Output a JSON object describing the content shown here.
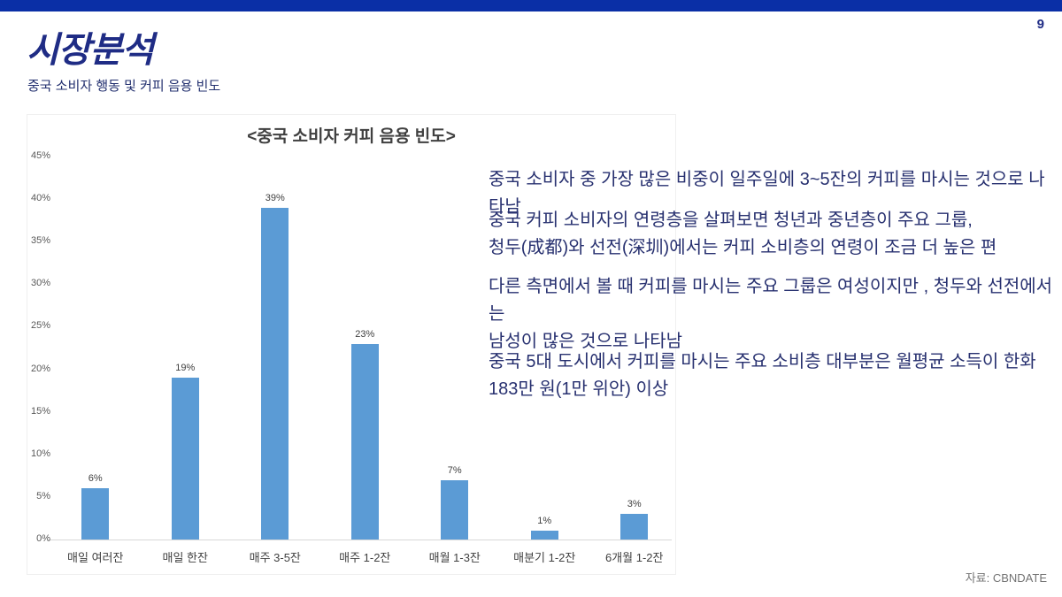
{
  "slide": {
    "page_number": "9",
    "title": "시장분석",
    "subtitle": "중국 소비자 행동 및 커피 음용 빈도",
    "source": "자료: CBNDATE",
    "bullets": [
      {
        "text": "중국 소비자 중 가장 많은 비중이 일주일에 3~5잔의 커피를 마시는 것으로 나타남"
      },
      {
        "text": " 중국 커피 소비자의 연령층을 살펴보면 청년과 중년층이 주요 그룹,\n청두(成都)와 선전(深圳)에서는 커피 소비층의 연령이 조금 더 높은 편"
      },
      {
        "text": " 다른 측면에서 볼 때 커피를 마시는 주요 그룹은 여성이지만 , 청두와 선전에서는\n남성이 많은 것으로 나타남"
      },
      {
        "text": " 중국 5대 도시에서 커피를 마시는 주요 소비층 대부분은 월평균 소득이 한화\n183만 원(1만 위안) 이상"
      }
    ],
    "colors": {
      "accent_bar": "#0a2fa6",
      "heading": "#1f2c85",
      "body_text": "#283170",
      "axis_text": "#595959",
      "label_text": "#404040"
    }
  },
  "chart_data": {
    "type": "bar",
    "title": "<중국 소비자 커피 음용 빈도>",
    "categories": [
      "매일 여러잔",
      "매일 한잔",
      "매주 3-5잔",
      "매주 1-2잔",
      "매월 1-3잔",
      "매분기 1-2잔",
      "6개월 1-2잔"
    ],
    "values": [
      6,
      19,
      39,
      23,
      7,
      1,
      3
    ],
    "value_labels": [
      "6%",
      "19%",
      "39%",
      "23%",
      "7%",
      "1%",
      "3%"
    ],
    "yticks": [
      0,
      5,
      10,
      15,
      20,
      25,
      30,
      35,
      40,
      45
    ],
    "ytick_suffix": "%",
    "ylim": [
      0,
      45
    ],
    "xlabel": "",
    "ylabel": "",
    "bar_color": "#5b9bd5",
    "grid": false,
    "legend": false
  }
}
